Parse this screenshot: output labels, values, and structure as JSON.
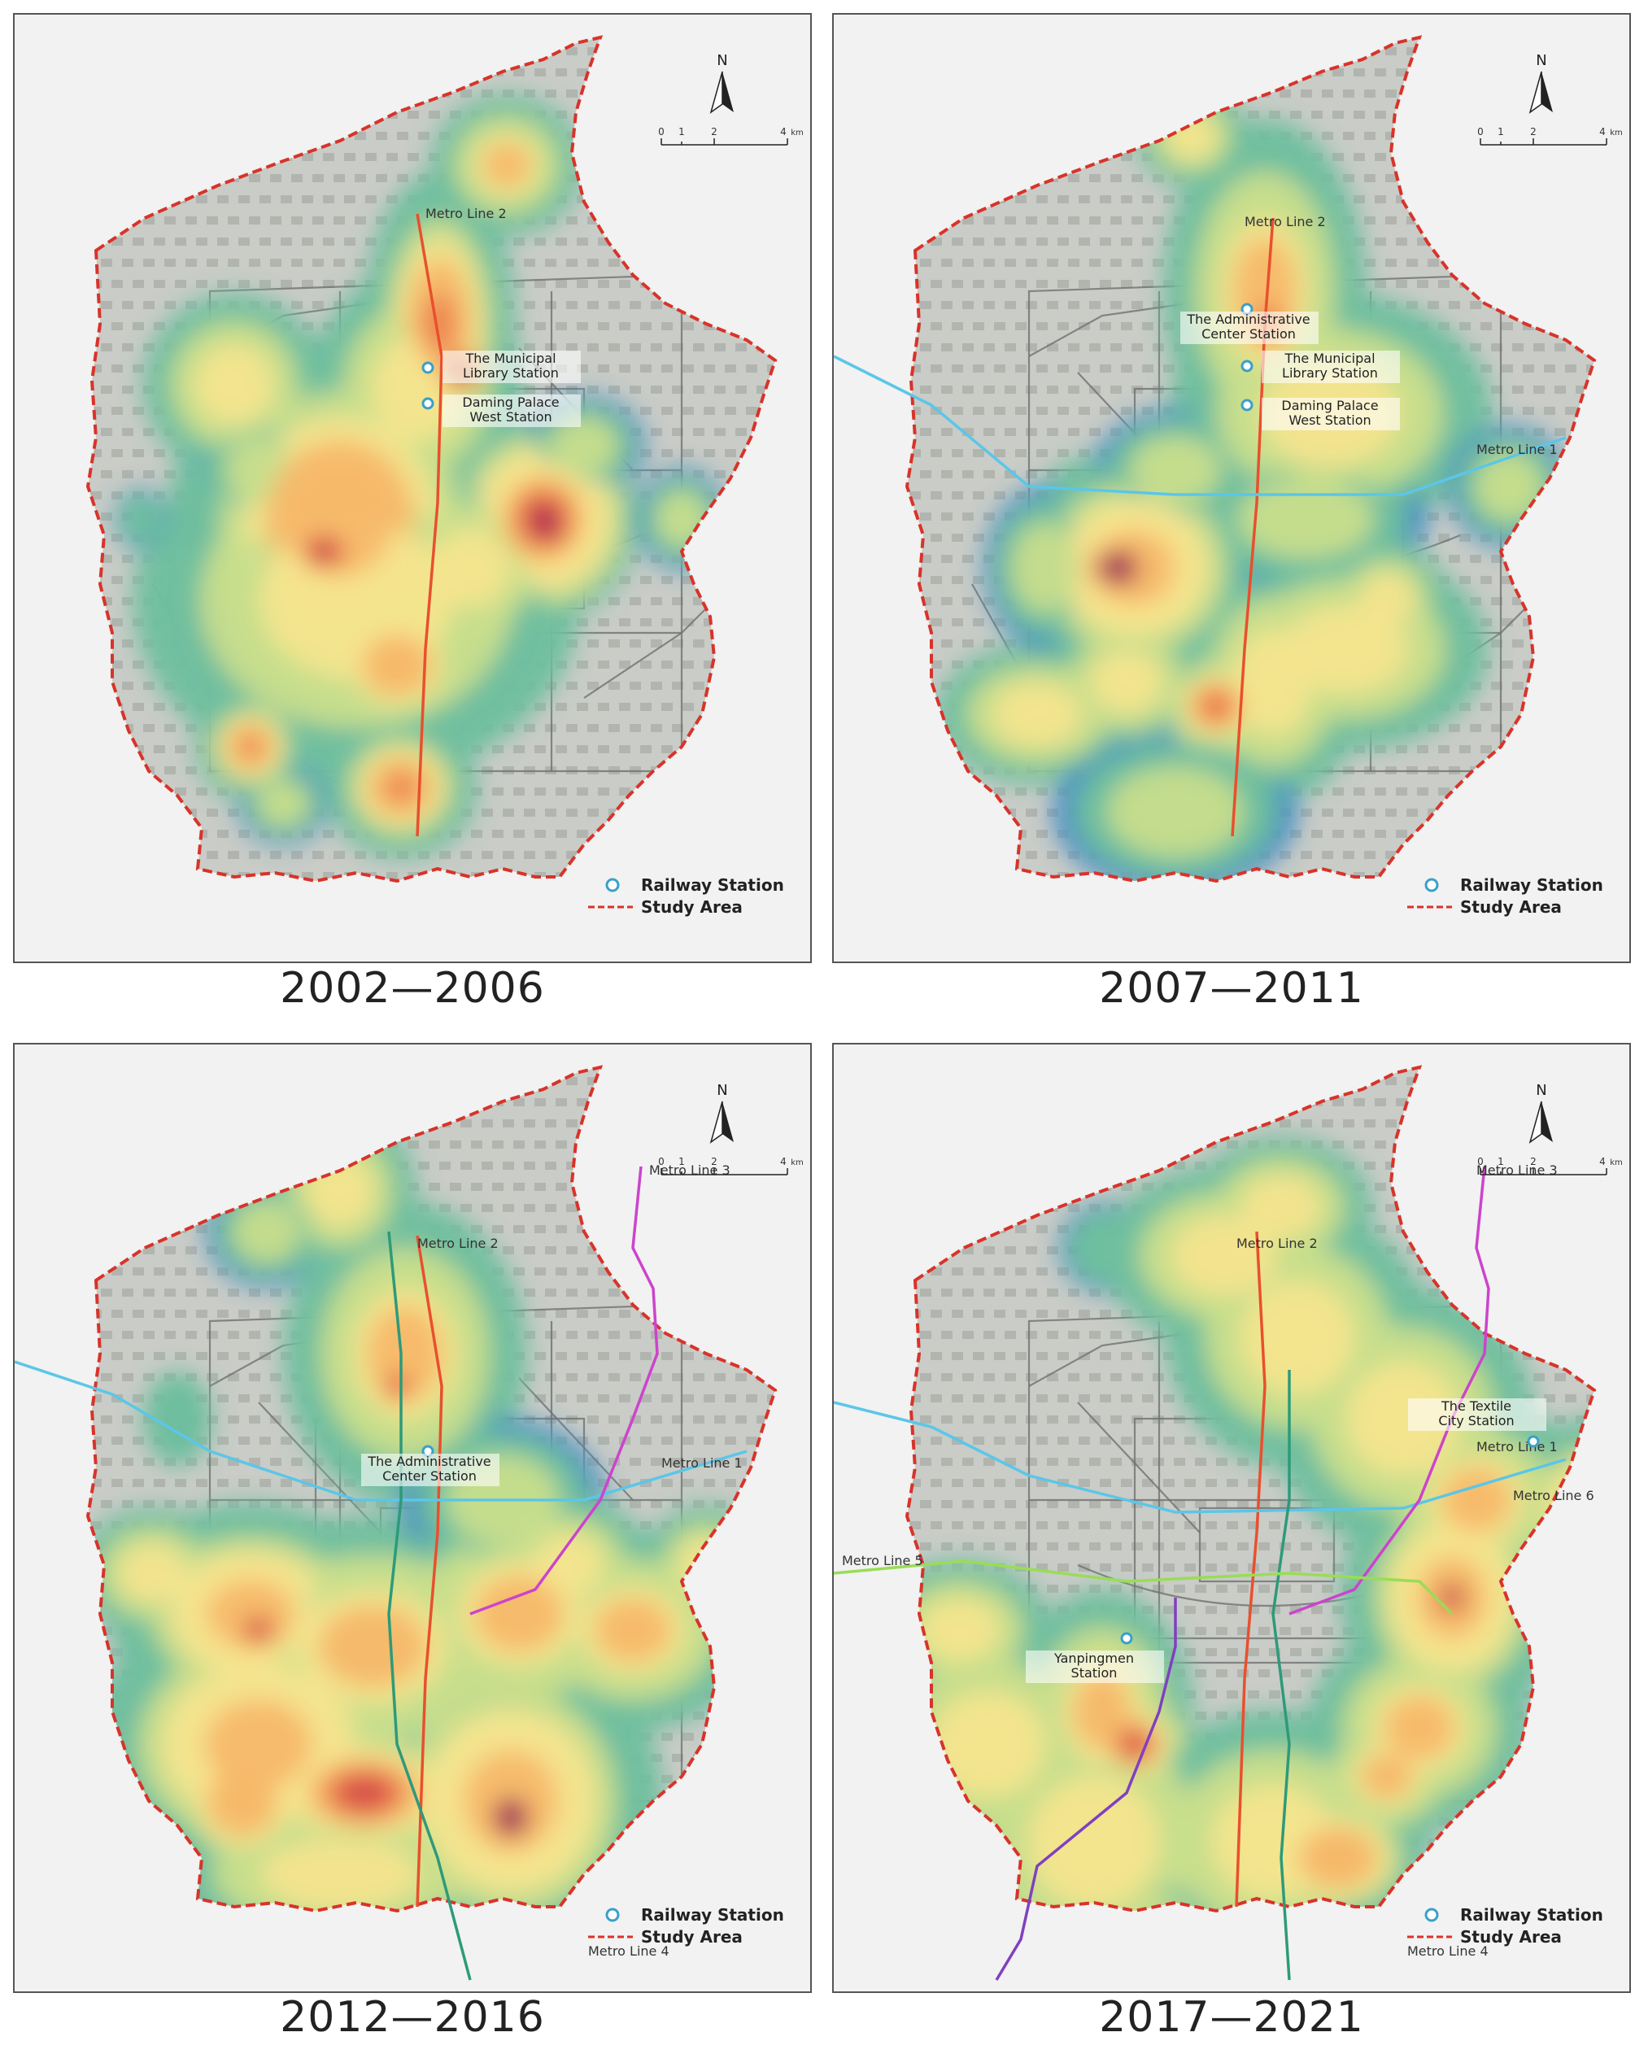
{
  "legend": {
    "station": "Railway Station",
    "study_area": "Study Area"
  },
  "compass": {
    "north": "N"
  },
  "scale": {
    "t0": "0",
    "t1": "1",
    "t2": "2",
    "t4": "4",
    "unit": "km"
  },
  "colors": {
    "boundary": "#d8332a",
    "line1": "#5bc6e8",
    "line2": "#e8502e",
    "line3": "#cc44cc",
    "line4": "#2e9a7a",
    "line5": "#99dd55",
    "line6": "#8040c0",
    "roads": "#707070",
    "heat": [
      "#3d86c6",
      "#6fbf9f",
      "#c8de8c",
      "#f6e48e",
      "#f6b86a",
      "#ec7d4e",
      "#d64a48",
      "#9a1e5a"
    ]
  },
  "panels": [
    {
      "caption": "2002—2006",
      "lines": [
        {
          "id": "line2",
          "label": "Metro Line 2"
        }
      ],
      "stations": [
        {
          "label1": "The Municipal",
          "label2": "Library Station"
        },
        {
          "label1": "Daming Palace",
          "label2": "West Station"
        }
      ]
    },
    {
      "caption": "2007—2011",
      "lines": [
        {
          "id": "line2",
          "label": "Metro Line 2"
        },
        {
          "id": "line1",
          "label": "Metro Line 1"
        }
      ],
      "stations": [
        {
          "label1": "The Administrative",
          "label2": "Center Station"
        },
        {
          "label1": "The Municipal",
          "label2": "Library Station"
        },
        {
          "label1": "Daming Palace",
          "label2": "West Station"
        }
      ]
    },
    {
      "caption": "2012—2016",
      "lines": [
        {
          "id": "line2",
          "label": "Metro Line 2"
        },
        {
          "id": "line1",
          "label": "Metro Line 1"
        },
        {
          "id": "line3",
          "label": "Metro Line 3"
        },
        {
          "id": "line4",
          "label": "Metro Line 4"
        }
      ],
      "stations": [
        {
          "label1": "The Administrative",
          "label2": "Center Station"
        }
      ]
    },
    {
      "caption": "2017—2021",
      "lines": [
        {
          "id": "line2",
          "label": "Metro Line 2"
        },
        {
          "id": "line1",
          "label": "Metro Line 1"
        },
        {
          "id": "line3",
          "label": "Metro Line 3"
        },
        {
          "id": "line4",
          "label": "Metro Line 4"
        },
        {
          "id": "line5",
          "label": "Metro Line 5"
        },
        {
          "id": "line6",
          "label": "Metro Line 6"
        }
      ],
      "stations": [
        {
          "label1": "The Textile",
          "label2": "City Station"
        },
        {
          "label1": "Yanpingmen",
          "label2": "Station"
        }
      ]
    }
  ]
}
